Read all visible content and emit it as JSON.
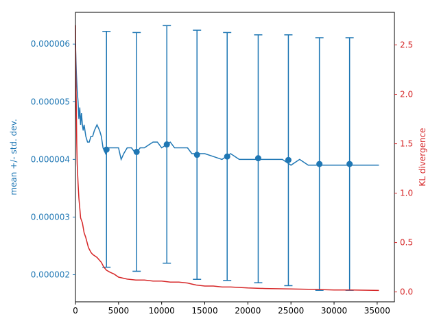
{
  "chart_data": {
    "type": "line",
    "x_ticks": [
      "0",
      "5000",
      "10000",
      "15000",
      "20000",
      "25000",
      "30000",
      "35000"
    ],
    "y_left_ticks": [
      "0.000002",
      "0.000003",
      "0.000004",
      "0.000005",
      "0.000006"
    ],
    "y_right_ticks": [
      "0.0",
      "0.5",
      "1.0",
      "1.5",
      "2.0",
      "2.5"
    ],
    "ylabel_left": "mean +/- std. dev.",
    "ylabel_right": "KL divergence",
    "xlim": [
      0,
      37000
    ],
    "ylim_left": [
      1.53e-06,
      6.55e-06
    ],
    "ylim_right": [
      -0.1,
      2.83
    ],
    "grid": false,
    "colors": {
      "left": "#1f77b4",
      "right": "#d62728",
      "axis": "#000000"
    },
    "series": [
      {
        "axis": "left",
        "style": "line",
        "x": [
          0,
          100,
          200,
          300,
          400,
          500,
          600,
          700,
          800,
          900,
          1000,
          1200,
          1400,
          1600,
          1800,
          2000,
          2200,
          2500,
          2800,
          3000,
          3200,
          3500,
          3800,
          4200,
          4600,
          5000,
          5300,
          5600,
          6000,
          6500,
          7000,
          7500,
          8000,
          8500,
          9000,
          9500,
          10000,
          10500,
          11000,
          11500,
          12000,
          12500,
          13000,
          13500,
          14000,
          15000,
          16000,
          17000,
          18000,
          19000,
          20000,
          21000,
          22000,
          23000,
          24000,
          25000,
          26000,
          27000,
          28000,
          29000,
          30000,
          31000,
          32000,
          33000,
          34000,
          35200
        ],
        "y": [
          6e-06,
          5.5e-06,
          5.2e-06,
          5e-06,
          4.7e-06,
          4.9e-06,
          4.6e-06,
          4.8e-06,
          4.6e-06,
          4.5e-06,
          4.6e-06,
          4.4e-06,
          4.3e-06,
          4.3e-06,
          4.4e-06,
          4.4e-06,
          4.5e-06,
          4.6e-06,
          4.5e-06,
          4.4e-06,
          4.2e-06,
          4.1e-06,
          4.2e-06,
          4.2e-06,
          4.2e-06,
          4.2e-06,
          4e-06,
          4.1e-06,
          4.2e-06,
          4.2e-06,
          4.1e-06,
          4.2e-06,
          4.2e-06,
          4.25e-06,
          4.3e-06,
          4.3e-06,
          4.2e-06,
          4.25e-06,
          4.3e-06,
          4.2e-06,
          4.2e-06,
          4.2e-06,
          4.2e-06,
          4.1e-06,
          4.1e-06,
          4.1e-06,
          4.05e-06,
          4e-06,
          4.1e-06,
          4e-06,
          4e-06,
          4e-06,
          4e-06,
          4e-06,
          4e-06,
          3.9e-06,
          4e-06,
          3.9e-06,
          3.9e-06,
          3.9e-06,
          3.9e-06,
          3.9e-06,
          3.9e-06,
          3.9e-06,
          3.9e-06,
          3.9e-06
        ]
      },
      {
        "axis": "left",
        "style": "errorbar",
        "x": [
          3600,
          7100,
          10600,
          14100,
          17600,
          21200,
          24700,
          28300,
          31800
        ],
        "y": [
          4.17e-06,
          4.13e-06,
          4.26e-06,
          4.08e-06,
          4.05e-06,
          4.02e-06,
          3.99e-06,
          3.92e-06,
          3.92e-06
        ],
        "upper": [
          6.22e-06,
          6.2e-06,
          6.32e-06,
          6.24e-06,
          6.2e-06,
          6.16e-06,
          6.16e-06,
          6.11e-06,
          6.11e-06
        ],
        "lower": [
          2.13e-06,
          2.06e-06,
          2.2e-06,
          1.92e-06,
          1.9e-06,
          1.86e-06,
          1.81e-06,
          1.73e-06,
          1.73e-06
        ]
      },
      {
        "axis": "right",
        "style": "line",
        "x": [
          0,
          50,
          100,
          150,
          200,
          300,
          400,
          500,
          600,
          800,
          1000,
          1200,
          1500,
          1800,
          2000,
          2500,
          3000,
          3300,
          3600,
          4000,
          4500,
          5000,
          6000,
          7000,
          8000,
          9000,
          10000,
          11000,
          12000,
          13000,
          13500,
          14000,
          15000,
          16000,
          17000,
          18000,
          20000,
          22000,
          25000,
          28000,
          30000,
          32000,
          35200
        ],
        "y": [
          2.7,
          2.2,
          1.85,
          1.5,
          1.3,
          1.1,
          0.95,
          0.85,
          0.75,
          0.7,
          0.6,
          0.55,
          0.45,
          0.4,
          0.38,
          0.35,
          0.3,
          0.25,
          0.22,
          0.2,
          0.18,
          0.15,
          0.13,
          0.12,
          0.12,
          0.11,
          0.11,
          0.1,
          0.1,
          0.09,
          0.08,
          0.07,
          0.06,
          0.06,
          0.05,
          0.05,
          0.04,
          0.035,
          0.03,
          0.025,
          0.02,
          0.02,
          0.015
        ]
      }
    ]
  }
}
